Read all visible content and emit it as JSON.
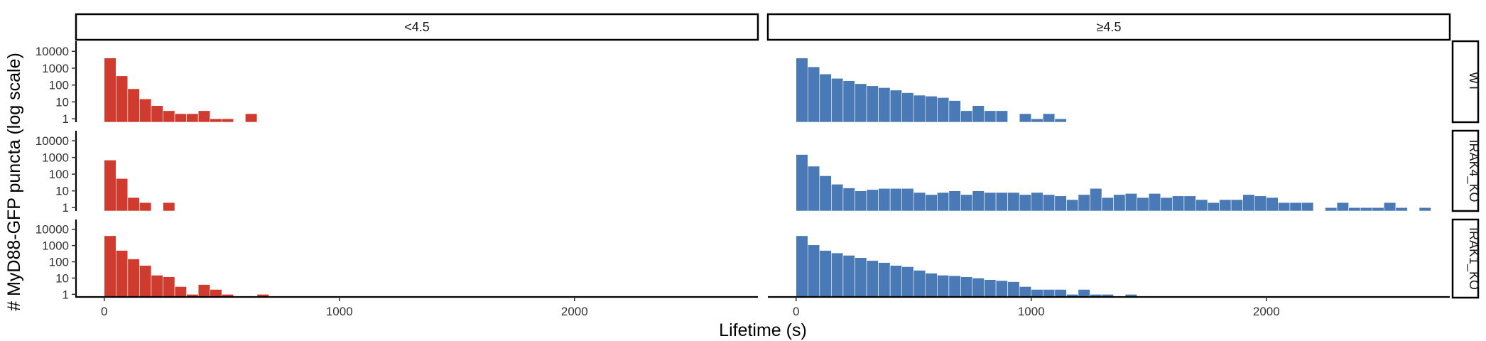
{
  "chart_data": {
    "type": "histogram",
    "x_axis_label": "Lifetime (s)",
    "y_axis_label": "# MyD88-GFP puncta (log scale)",
    "y_scale": "log10",
    "y_ticks": [
      1,
      10,
      100,
      1000,
      10000
    ],
    "y_tick_labels": [
      "1",
      "10",
      "100",
      "1000",
      "10000"
    ],
    "x_ticks": [
      0,
      1000,
      2000
    ],
    "x_tick_labels": [
      "0",
      "1000",
      "2000"
    ],
    "xlim": [
      -120,
      2780
    ],
    "bin_width": 50,
    "grid": false,
    "legend": "none",
    "column_facets": [
      {
        "label": "<4.5",
        "color": "#d03b30"
      },
      {
        "label": "≥4.5",
        "color": "#4a7ab5"
      }
    ],
    "row_facets": [
      "WT",
      "IRAK4_KO",
      "IRAK1_KO"
    ],
    "panels": [
      {
        "row": "WT",
        "col": "<4.5",
        "bins": [
          {
            "x": 25,
            "count": 4000
          },
          {
            "x": 75,
            "count": 350
          },
          {
            "x": 125,
            "count": 60
          },
          {
            "x": 175,
            "count": 15
          },
          {
            "x": 225,
            "count": 6
          },
          {
            "x": 275,
            "count": 3
          },
          {
            "x": 325,
            "count": 2
          },
          {
            "x": 375,
            "count": 2
          },
          {
            "x": 425,
            "count": 3
          },
          {
            "x": 475,
            "count": 1
          },
          {
            "x": 525,
            "count": 1
          },
          {
            "x": 625,
            "count": 2
          }
        ]
      },
      {
        "row": "WT",
        "col": "≥4.5",
        "bins": [
          {
            "x": 25,
            "count": 4000
          },
          {
            "x": 75,
            "count": 1200
          },
          {
            "x": 125,
            "count": 450
          },
          {
            "x": 175,
            "count": 250
          },
          {
            "x": 225,
            "count": 180
          },
          {
            "x": 275,
            "count": 120
          },
          {
            "x": 325,
            "count": 90
          },
          {
            "x": 375,
            "count": 70
          },
          {
            "x": 425,
            "count": 50
          },
          {
            "x": 475,
            "count": 35
          },
          {
            "x": 525,
            "count": 25
          },
          {
            "x": 575,
            "count": 22
          },
          {
            "x": 625,
            "count": 18
          },
          {
            "x": 675,
            "count": 12
          },
          {
            "x": 725,
            "count": 3
          },
          {
            "x": 775,
            "count": 6
          },
          {
            "x": 825,
            "count": 3
          },
          {
            "x": 875,
            "count": 3
          },
          {
            "x": 975,
            "count": 2
          },
          {
            "x": 1025,
            "count": 1
          },
          {
            "x": 1075,
            "count": 2
          },
          {
            "x": 1125,
            "count": 1
          }
        ]
      },
      {
        "row": "IRAK4_KO",
        "col": "<4.5",
        "bins": [
          {
            "x": 25,
            "count": 700
          },
          {
            "x": 75,
            "count": 55
          },
          {
            "x": 125,
            "count": 4
          },
          {
            "x": 175,
            "count": 2
          },
          {
            "x": 275,
            "count": 2
          }
        ]
      },
      {
        "row": "IRAK4_KO",
        "col": "≥4.5",
        "bins": [
          {
            "x": 25,
            "count": 1500
          },
          {
            "x": 75,
            "count": 300
          },
          {
            "x": 125,
            "count": 80
          },
          {
            "x": 175,
            "count": 25
          },
          {
            "x": 225,
            "count": 15
          },
          {
            "x": 275,
            "count": 10
          },
          {
            "x": 325,
            "count": 12
          },
          {
            "x": 375,
            "count": 14
          },
          {
            "x": 425,
            "count": 14
          },
          {
            "x": 475,
            "count": 14
          },
          {
            "x": 525,
            "count": 8
          },
          {
            "x": 575,
            "count": 6
          },
          {
            "x": 625,
            "count": 8
          },
          {
            "x": 675,
            "count": 10
          },
          {
            "x": 725,
            "count": 6
          },
          {
            "x": 775,
            "count": 10
          },
          {
            "x": 825,
            "count": 8
          },
          {
            "x": 875,
            "count": 8
          },
          {
            "x": 925,
            "count": 8
          },
          {
            "x": 975,
            "count": 6
          },
          {
            "x": 1025,
            "count": 8
          },
          {
            "x": 1075,
            "count": 6
          },
          {
            "x": 1125,
            "count": 5
          },
          {
            "x": 1175,
            "count": 3
          },
          {
            "x": 1225,
            "count": 6
          },
          {
            "x": 1275,
            "count": 14
          },
          {
            "x": 1325,
            "count": 4
          },
          {
            "x": 1375,
            "count": 6
          },
          {
            "x": 1425,
            "count": 7
          },
          {
            "x": 1475,
            "count": 4
          },
          {
            "x": 1525,
            "count": 7
          },
          {
            "x": 1575,
            "count": 4
          },
          {
            "x": 1625,
            "count": 5
          },
          {
            "x": 1675,
            "count": 5
          },
          {
            "x": 1725,
            "count": 3
          },
          {
            "x": 1775,
            "count": 2
          },
          {
            "x": 1825,
            "count": 3
          },
          {
            "x": 1875,
            "count": 3
          },
          {
            "x": 1925,
            "count": 6
          },
          {
            "x": 1975,
            "count": 5
          },
          {
            "x": 2025,
            "count": 4
          },
          {
            "x": 2075,
            "count": 2
          },
          {
            "x": 2125,
            "count": 2
          },
          {
            "x": 2175,
            "count": 2
          },
          {
            "x": 2275,
            "count": 1
          },
          {
            "x": 2325,
            "count": 2
          },
          {
            "x": 2375,
            "count": 1
          },
          {
            "x": 2425,
            "count": 1
          },
          {
            "x": 2475,
            "count": 1
          },
          {
            "x": 2525,
            "count": 2
          },
          {
            "x": 2575,
            "count": 1
          },
          {
            "x": 2675,
            "count": 1
          }
        ]
      },
      {
        "row": "IRAK1_KO",
        "col": "<4.5",
        "bins": [
          {
            "x": 25,
            "count": 4000
          },
          {
            "x": 75,
            "count": 500
          },
          {
            "x": 125,
            "count": 150
          },
          {
            "x": 175,
            "count": 60
          },
          {
            "x": 225,
            "count": 15
          },
          {
            "x": 275,
            "count": 12
          },
          {
            "x": 325,
            "count": 3
          },
          {
            "x": 375,
            "count": 1
          },
          {
            "x": 425,
            "count": 4
          },
          {
            "x": 475,
            "count": 2
          },
          {
            "x": 525,
            "count": 1
          },
          {
            "x": 675,
            "count": 1
          }
        ]
      },
      {
        "row": "IRAK1_KO",
        "col": "≥4.5",
        "bins": [
          {
            "x": 25,
            "count": 4000
          },
          {
            "x": 75,
            "count": 1100
          },
          {
            "x": 125,
            "count": 500
          },
          {
            "x": 175,
            "count": 350
          },
          {
            "x": 225,
            "count": 250
          },
          {
            "x": 275,
            "count": 180
          },
          {
            "x": 325,
            "count": 120
          },
          {
            "x": 375,
            "count": 90
          },
          {
            "x": 425,
            "count": 60
          },
          {
            "x": 475,
            "count": 50
          },
          {
            "x": 525,
            "count": 30
          },
          {
            "x": 575,
            "count": 20
          },
          {
            "x": 625,
            "count": 15
          },
          {
            "x": 675,
            "count": 14
          },
          {
            "x": 725,
            "count": 12
          },
          {
            "x": 775,
            "count": 10
          },
          {
            "x": 825,
            "count": 8
          },
          {
            "x": 875,
            "count": 7
          },
          {
            "x": 925,
            "count": 6
          },
          {
            "x": 975,
            "count": 3
          },
          {
            "x": 1025,
            "count": 2
          },
          {
            "x": 1075,
            "count": 2
          },
          {
            "x": 1125,
            "count": 2
          },
          {
            "x": 1175,
            "count": 1
          },
          {
            "x": 1225,
            "count": 2
          },
          {
            "x": 1275,
            "count": 1
          },
          {
            "x": 1325,
            "count": 1
          },
          {
            "x": 1425,
            "count": 1
          }
        ]
      }
    ]
  }
}
